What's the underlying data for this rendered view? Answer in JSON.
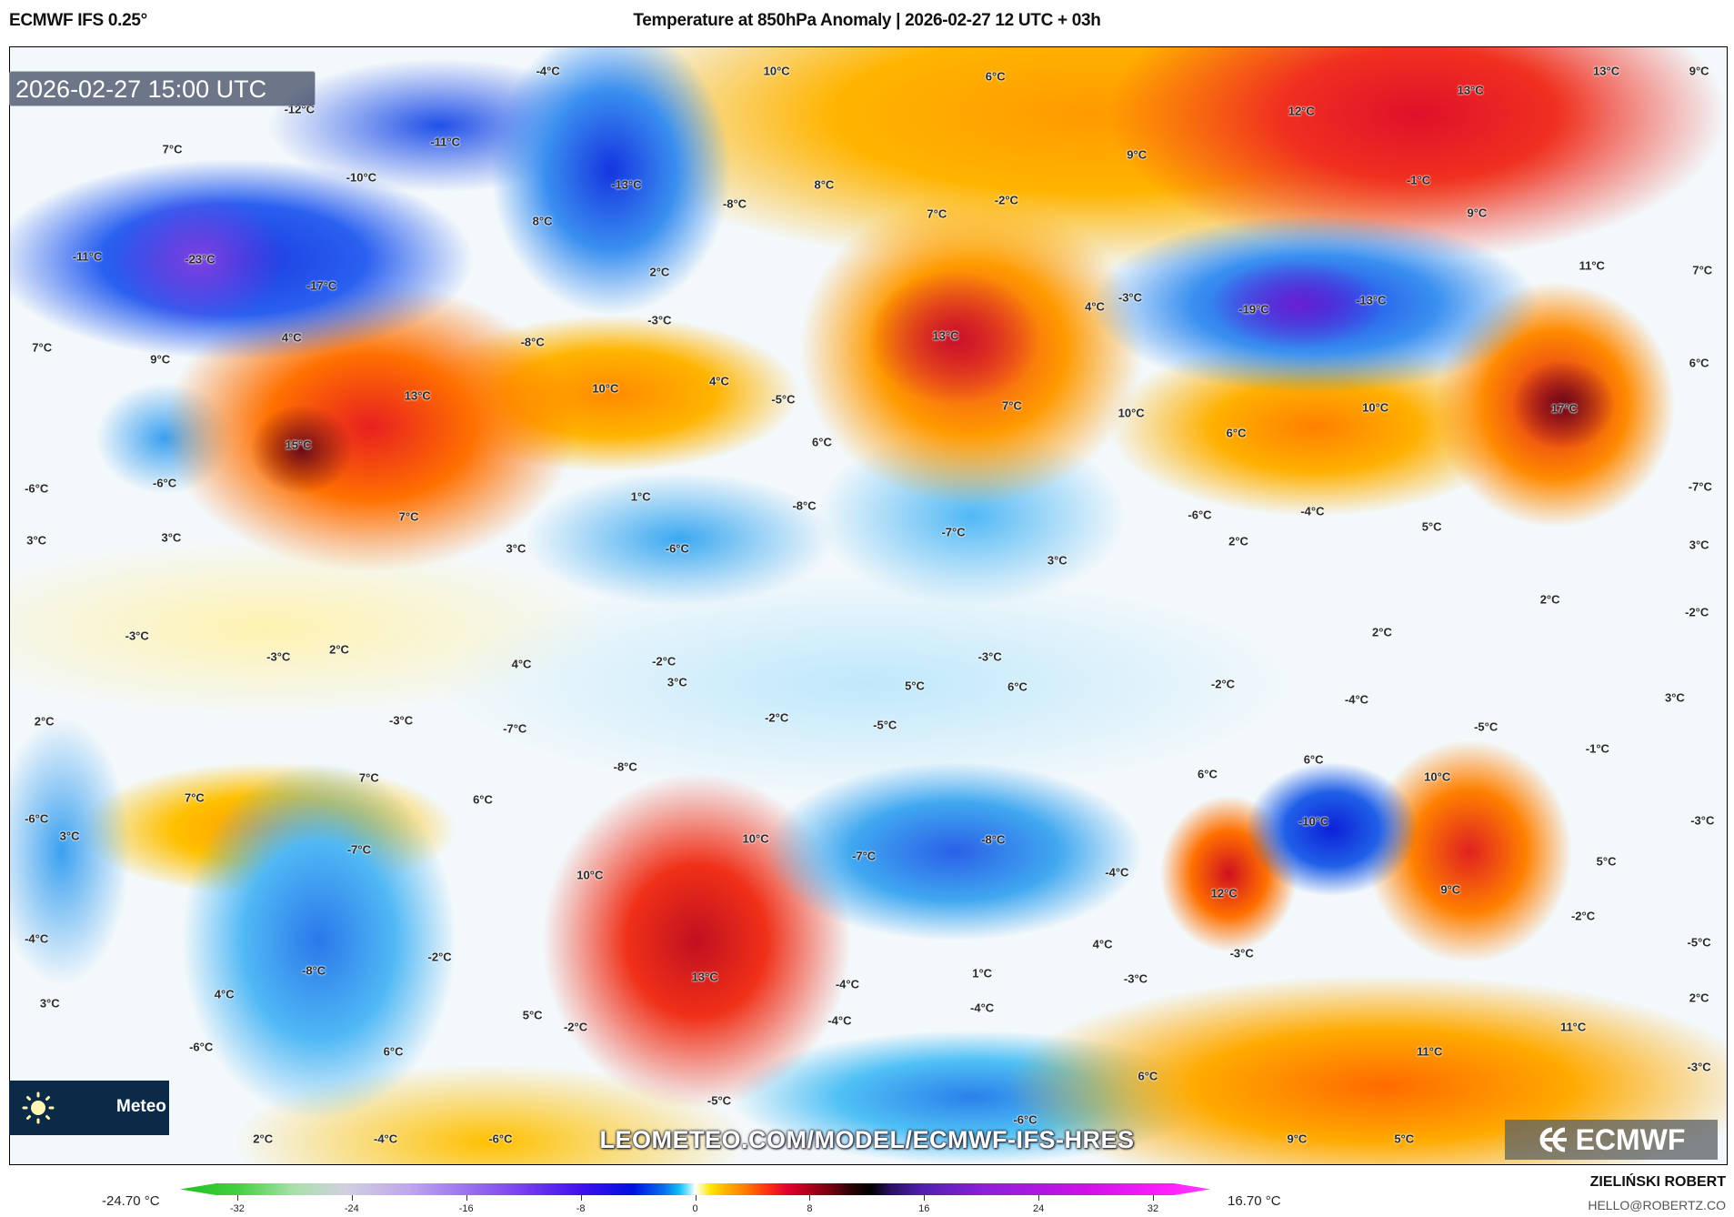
{
  "header": {
    "model": "ECMWF IFS 0.25°",
    "title": "Temperature at 850hPa Anomaly | 2026-02-27 12 UTC + 03h"
  },
  "map": {
    "valid_time": "2026-02-27 15:00 UTC",
    "labels": [
      "-4°C",
      "10°C",
      "6°C",
      "13°C",
      "9°C",
      "13°C",
      "12°C",
      "-12°C",
      "-11°C",
      "7°C",
      "-10°C",
      "-13°C",
      "8°C",
      "-8°C",
      "9°C",
      "-1°C",
      "7°C",
      "-2°C",
      "9°C",
      "8°C",
      "-11°C",
      "-23°C",
      "-17°C",
      "2°C",
      "11°C",
      "7°C",
      "4°C",
      "-3°C",
      "-19°C",
      "-13°C",
      "-3°C",
      "4°C",
      "-8°C",
      "13°C",
      "7°C",
      "9°C",
      "6°C",
      "13°C",
      "10°C",
      "4°C",
      "-5°C",
      "7°C",
      "10°C",
      "10°C",
      "17°C",
      "6°C",
      "15°C",
      "6°C",
      "-6°C",
      "-6°C",
      "-7°C",
      "1°C",
      "-8°C",
      "7°C",
      "-6°C",
      "-4°C",
      "5°C",
      "-7°C",
      "3°C",
      "3°C",
      "3°C",
      "-6°C",
      "2°C",
      "3°C",
      "3°C",
      "2°C",
      "-2°C",
      "-3°C",
      "2°C",
      "-3°C",
      "4°C",
      "-2°C",
      "2°C",
      "3°C",
      "-3°C",
      "5°C",
      "6°C",
      "-2°C",
      "-4°C",
      "3°C",
      "2°C",
      "-3°C",
      "-7°C",
      "-2°C",
      "-5°C",
      "-5°C",
      "-1°C",
      "-8°C",
      "6°C",
      "6°C",
      "10°C",
      "7°C",
      "7°C",
      "6°C",
      "-6°C",
      "3°C",
      "-7°C",
      "10°C",
      "-8°C",
      "-7°C",
      "-10°C",
      "-3°C",
      "5°C",
      "-4°C",
      "10°C",
      "9°C",
      "12°C",
      "-2°C",
      "-4°C",
      "-2°C",
      "4°C",
      "-3°C",
      "-5°C",
      "-8°C",
      "13°C",
      "1°C",
      "-4°C",
      "-3°C",
      "4°C",
      "3°C",
      "5°C",
      "-2°C",
      "-4°C",
      "-4°C",
      "2°C",
      "11°C",
      "-6°C",
      "6°C",
      "11°C",
      "-3°C",
      "6°C",
      "-5°C",
      "-6°C",
      "2°C",
      "-4°C",
      "-6°C",
      "9°C",
      "5°C"
    ],
    "watermark": "LEOMETEO.COM/MODEL/ECMWF-IFS-HRES",
    "meteo_badge": "Meteo",
    "ecmwf_logo": "ECMWF"
  },
  "colorbar": {
    "min_value": "-24.70 °C",
    "max_value": "16.70 °C",
    "ticks": [
      "-32",
      "-24",
      "-16",
      "-8",
      "0",
      "8",
      "16",
      "24",
      "32"
    ]
  },
  "footer": {
    "author": "ZIELIŃSKI ROBERT",
    "email": "HELLO@ROBERTZ.CO"
  },
  "colors": {
    "cold": "#1a38e0",
    "warm": "#e0102a",
    "neutral": "#ffffff"
  }
}
